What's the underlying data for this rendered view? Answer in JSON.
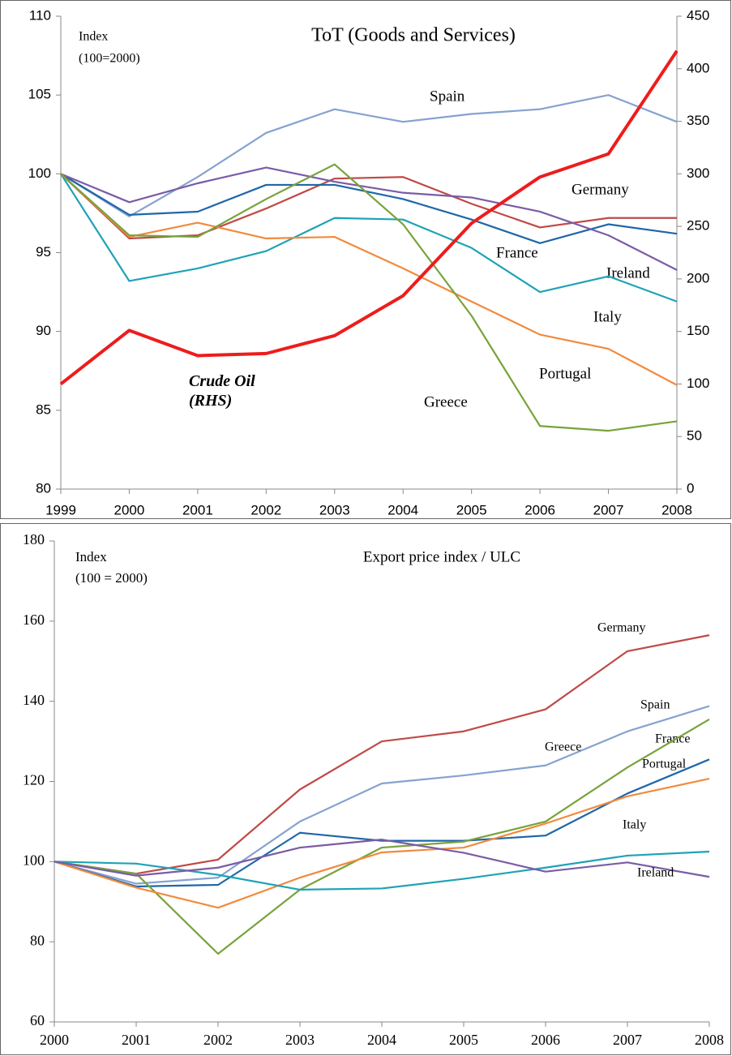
{
  "chart_data": [
    {
      "type": "line",
      "title": "ToT (Goods and Services)",
      "annotations": [
        "Index",
        "(100=2000)"
      ],
      "categories": [
        "1999",
        "2000",
        "2001",
        "2002",
        "2003",
        "2004",
        "2005",
        "2006",
        "2007",
        "2008"
      ],
      "ylim": [
        80,
        110
      ],
      "yticks": [
        80,
        85,
        90,
        95,
        100,
        105,
        110
      ],
      "y2lim": [
        0,
        450
      ],
      "y2ticks": [
        0,
        50,
        100,
        150,
        200,
        250,
        300,
        350,
        400,
        450
      ],
      "series": [
        {
          "name": "Spain",
          "color": "#86a2d0",
          "values": [
            100,
            97.3,
            99.8,
            102.6,
            104.1,
            103.3,
            103.8,
            104.1,
            105.0,
            103.3
          ]
        },
        {
          "name": "Germany",
          "color": "#bf4a47",
          "values": [
            100,
            95.9,
            96.1,
            97.8,
            99.7,
            99.8,
            98.1,
            96.6,
            97.2,
            97.2
          ]
        },
        {
          "name": "France",
          "color": "#1f67a8",
          "values": [
            100,
            97.4,
            97.6,
            99.3,
            99.3,
            98.4,
            97.1,
            95.6,
            96.8,
            96.2
          ]
        },
        {
          "name": "Ireland",
          "color": "#7a5ca6",
          "values": [
            100,
            98.2,
            99.4,
            100.4,
            99.5,
            98.8,
            98.5,
            97.6,
            96.1,
            93.9
          ]
        },
        {
          "name": "Italy",
          "color": "#1ea3b5",
          "values": [
            100,
            93.2,
            94.0,
            95.1,
            97.2,
            97.1,
            95.3,
            92.5,
            93.5,
            91.9
          ]
        },
        {
          "name": "Portugal",
          "color": "#f28a3c",
          "values": [
            100,
            96.0,
            96.9,
            95.9,
            96.0,
            94.0,
            91.9,
            89.8,
            88.9,
            86.6
          ]
        },
        {
          "name": "Greece",
          "color": "#78a33b",
          "values": [
            100,
            96.1,
            96.0,
            98.4,
            100.6,
            96.8,
            91.0,
            84.0,
            83.7,
            84.3
          ]
        },
        {
          "name": "Crude Oil (RHS)",
          "color": "#ee1c1c",
          "axis": "y2",
          "values": [
            100,
            151,
            127,
            129,
            146,
            184,
            253,
            297,
            319,
            417
          ]
        }
      ]
    },
    {
      "type": "line",
      "title": "Export price index / ULC",
      "annotations": [
        "Index",
        "(100 = 2000)"
      ],
      "categories": [
        "2000",
        "2001",
        "2002",
        "2003",
        "2004",
        "2005",
        "2006",
        "2007",
        "2008"
      ],
      "ylim": [
        60,
        180
      ],
      "yticks": [
        60,
        80,
        100,
        120,
        140,
        160,
        180
      ],
      "series": [
        {
          "name": "Germany",
          "color": "#bf4a47",
          "values": [
            100,
            97,
            100.5,
            118,
            130,
            132.5,
            138,
            152.5,
            156.5
          ]
        },
        {
          "name": "Spain",
          "color": "#86a2d0",
          "values": [
            100,
            94.5,
            96,
            110,
            119.5,
            121.5,
            124,
            132.5,
            138.8
          ]
        },
        {
          "name": "France",
          "color": "#1f67a8",
          "values": [
            100,
            93.8,
            94.2,
            107.2,
            105.2,
            105.2,
            106.5,
            117,
            125.5
          ]
        },
        {
          "name": "Greece",
          "color": "#78a33b",
          "values": [
            100,
            97,
            77,
            93,
            103.5,
            105,
            110,
            123.5,
            135.5
          ]
        },
        {
          "name": "Portugal",
          "color": "#f28a3c",
          "values": [
            100,
            93.5,
            88.5,
            96,
            102.3,
            103.5,
            109.5,
            116.3,
            120.7
          ]
        },
        {
          "name": "Italy",
          "color": "#1ea3b5",
          "values": [
            100,
            99.5,
            96.7,
            93,
            93.3,
            95.7,
            98.5,
            101.5,
            102.5
          ]
        },
        {
          "name": "Ireland",
          "color": "#7a5ca6",
          "values": [
            100,
            96.5,
            98.5,
            103.5,
            105.5,
            102.2,
            97.5,
            99.8,
            96.2
          ]
        }
      ]
    }
  ]
}
